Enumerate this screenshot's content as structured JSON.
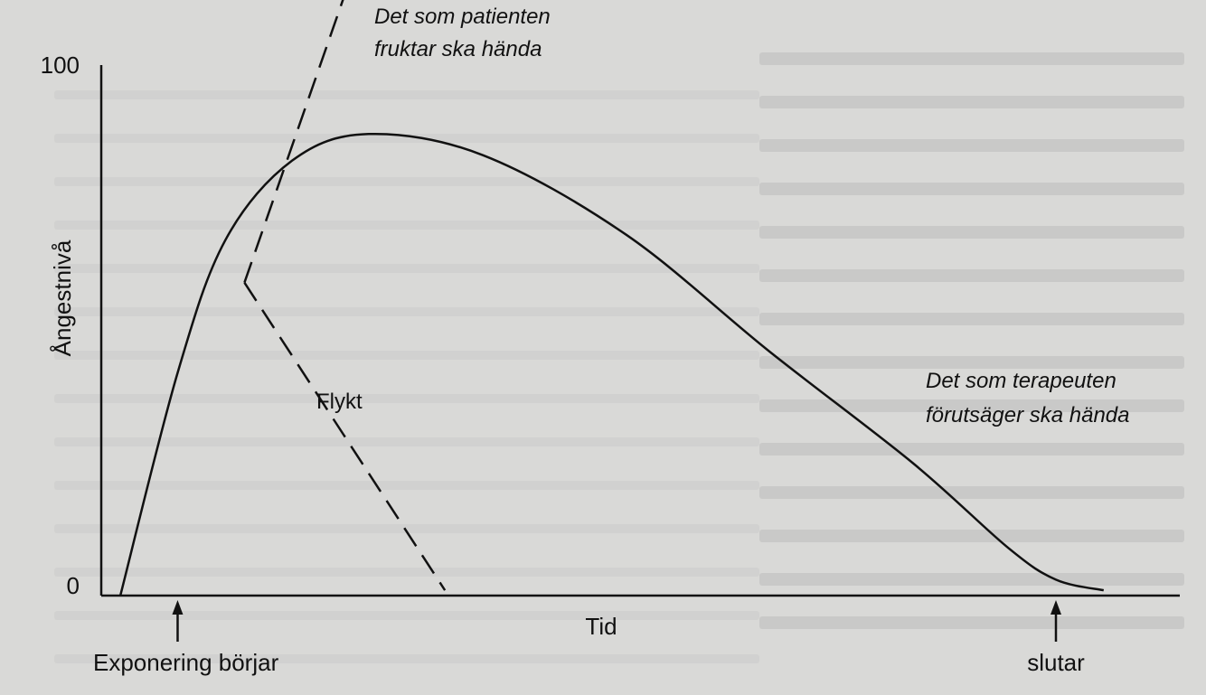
{
  "chart_data": {
    "type": "line",
    "title": "",
    "xlabel": "Tid",
    "ylabel": "Ångestnivå",
    "ylim": [
      0,
      100
    ],
    "y_ticks": [
      "0",
      "100"
    ],
    "grid": false,
    "series": [
      {
        "name": "Det som terapeuten förutsäger ska hända",
        "style": "solid",
        "points": [
          [
            2,
            0
          ],
          [
            8,
            42
          ],
          [
            13,
            67
          ],
          [
            20,
            82
          ],
          [
            28,
            87
          ],
          [
            40,
            83
          ],
          [
            55,
            68
          ],
          [
            70,
            46
          ],
          [
            85,
            25
          ],
          [
            95,
            9
          ],
          [
            100,
            3
          ],
          [
            105,
            1
          ]
        ]
      },
      {
        "name": "Det som patienten fruktar ska hända",
        "style": "dashed",
        "points": [
          [
            15,
            59
          ],
          [
            27,
            121
          ]
        ]
      },
      {
        "name": "Flykt",
        "style": "dashed",
        "points": [
          [
            15,
            59
          ],
          [
            36,
            1
          ]
        ]
      }
    ],
    "annotations": [
      {
        "id": "start",
        "text": "Exponering börjar",
        "x": 8,
        "arrow": "up"
      },
      {
        "id": "end",
        "text": "slutar",
        "x": 100,
        "arrow": "up"
      }
    ]
  }
}
